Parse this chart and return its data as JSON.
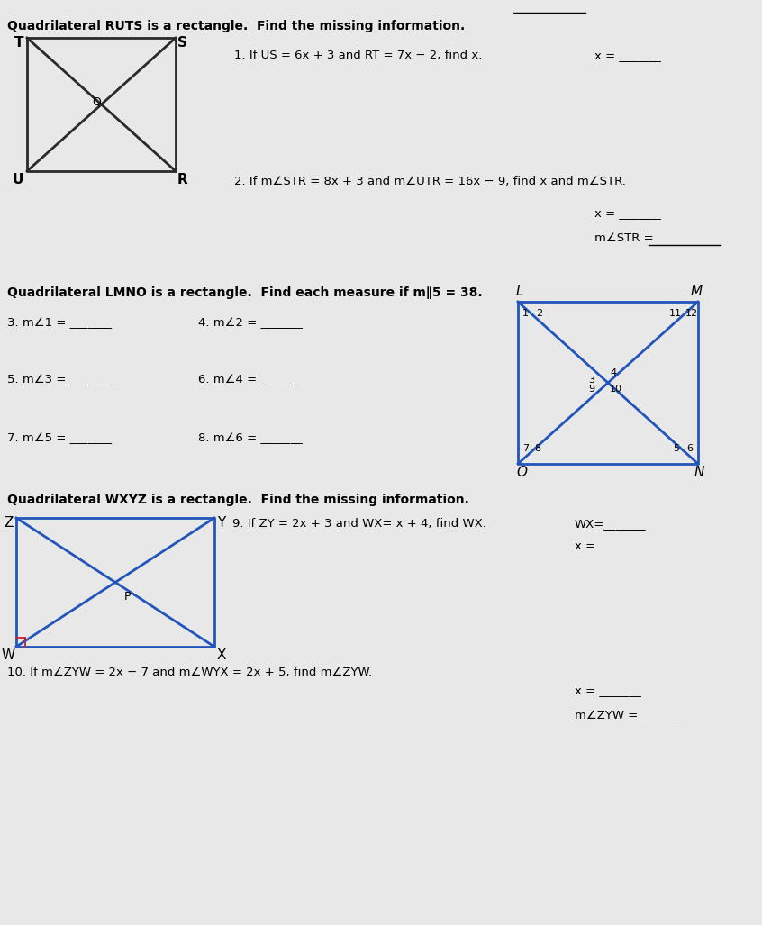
{
  "bg_color": "#e8e8e8",
  "text_color": "#000000",
  "title1": "Quadrilateral RUTS is a rectangle.  Find the missing information.",
  "title2": "Quadrilateral LMNO is a rectangle.  Find each measure if m∥5 = 38.",
  "title3": "Quadrilateral WXYZ is a rectangle.  Find the missing information.",
  "q1": "1. If US = 6x + 3 and RT = 7x − 2, find x.",
  "q1_ans": "x = _______",
  "q2": "2. If m∠STR = 8x + 3 and m∠UTR = 16x − 9, find x and m∠STR.",
  "q2_ans1": "x = _______",
  "q2_ans2": "m∠STR =",
  "q2_line": "________",
  "q3": "3. m∠1 = _______",
  "q4": "4. m∠2 = _______",
  "q5": "5. m∠3 = _______",
  "q6": "6. m∠4 = _______",
  "q7": "7. m∠5 = _______",
  "q8": "8. m∠6 = _______",
  "q9": "9. If ZY = 2x + 3 and WX= x + 4, find WX.",
  "q9_ans1": "WX=_______",
  "q9_x": "x =",
  "q10": "10. If m∠ZYW = 2x − 7 and m∠WYX = 2x + 5, find m∠ZYW.",
  "q10_ans1": "x = _______",
  "q10_ans2": "m∠ZYW = _______",
  "rect_color": "#2a2a2a",
  "rect_blue": "#2255bb",
  "lmno_nums": [
    "1",
    "2",
    "11",
    "12",
    "3",
    "4",
    "9",
    "10",
    "7",
    "8",
    "5",
    "6"
  ]
}
